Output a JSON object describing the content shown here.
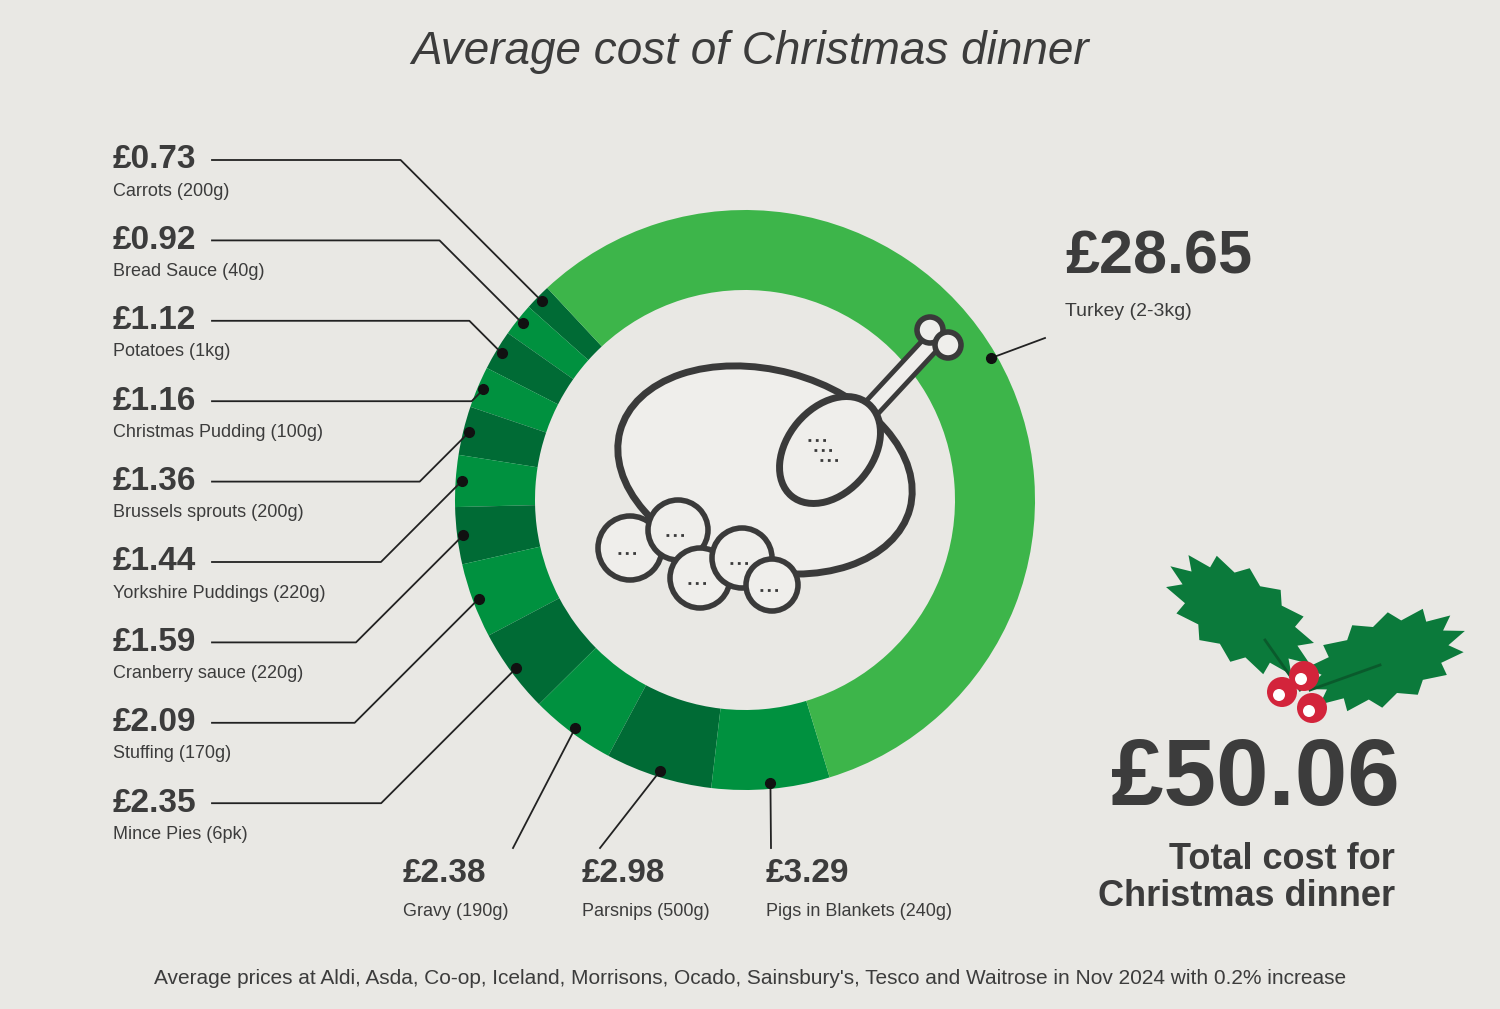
{
  "chart_data": {
    "type": "pie",
    "title": "Average cost of Christmas dinner",
    "categories": [
      "Carrots (200g)",
      "Bread Sauce (40g)",
      "Potatoes (1kg)",
      "Christmas Pudding (100g)",
      "Brussels sprouts (200g)",
      "Yorkshire Puddings (220g)",
      "Cranberry sauce (220g)",
      "Stuffing (170g)",
      "Mince Pies (6pk)",
      "Gravy (190g)",
      "Parsnips (500g)",
      "Pigs in Blankets (240g)",
      "Turkey (2-3kg)"
    ],
    "values": [
      0.73,
      0.92,
      1.12,
      1.16,
      1.36,
      1.44,
      1.59,
      2.09,
      2.35,
      2.38,
      2.98,
      3.29,
      28.65
    ],
    "value_labels": [
      "£0.73",
      "£0.92",
      "£1.12",
      "£1.16",
      "£1.36",
      "£1.44",
      "£1.59",
      "£2.09",
      "£2.35",
      "£2.38",
      "£2.98",
      "£3.29",
      "£28.65"
    ],
    "colors": [
      "#006b35",
      "#00913f",
      "#006b35",
      "#00913f",
      "#006b35",
      "#00913f",
      "#006b35",
      "#00913f",
      "#006b35",
      "#00913f",
      "#006b35",
      "#00913f",
      "#3db54a"
    ],
    "data_labels": true,
    "total": {
      "value": 50.06,
      "label": "£50.06",
      "text": "Total cost for\nChristmas dinner"
    },
    "note": "Average prices at Aldi, Asda, Co-op, Iceland, Morrisons, Ocado, Sainsbury's, Tesco and Waitrose in Nov 2024 with 0.2% increase"
  }
}
